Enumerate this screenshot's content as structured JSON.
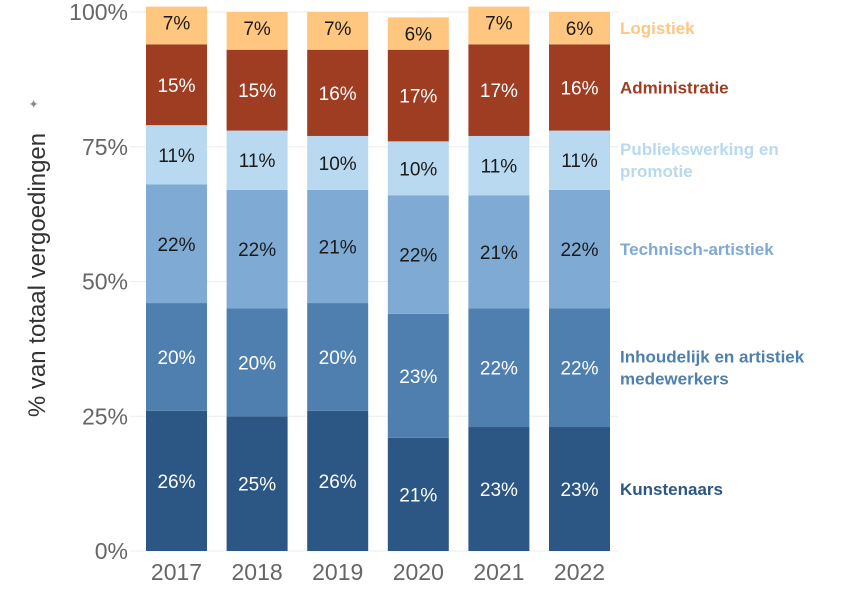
{
  "chart_data": {
    "type": "bar",
    "stacked": true,
    "title": "",
    "xlabel": "",
    "ylabel": "% van totaal vergoedingen",
    "ylabel_marker": "✦",
    "ylim": [
      0,
      100
    ],
    "y_ticks": [
      "0%",
      "25%",
      "50%",
      "75%",
      "100%"
    ],
    "y_tick_values": [
      0,
      25,
      50,
      75,
      100
    ],
    "categories": [
      "2017",
      "2018",
      "2019",
      "2020",
      "2021",
      "2022"
    ],
    "series": [
      {
        "name": "Kunstenaars",
        "legend_lines": [
          "Kunstenaars"
        ],
        "color": "#2c5784",
        "label_color": "#ffffff",
        "values": [
          26,
          25,
          26,
          21,
          23,
          23
        ]
      },
      {
        "name": "Inhoudelijk en artistiek medewerkers",
        "legend_lines": [
          "Inhoudelijk en artistiek",
          "medewerkers"
        ],
        "color": "#4e7fae",
        "label_color": "#ffffff",
        "values": [
          20,
          20,
          20,
          23,
          22,
          22
        ]
      },
      {
        "name": "Technisch-artistiek",
        "legend_lines": [
          "Technisch-artistiek"
        ],
        "color": "#7faad3",
        "label_color": "#1a1a1a",
        "values": [
          22,
          22,
          21,
          22,
          21,
          22
        ]
      },
      {
        "name": "Publiekswerking en promotie",
        "legend_lines": [
          "Publiekswerking en",
          "promotie"
        ],
        "color": "#b8d9ef",
        "label_color": "#1a1a1a",
        "values": [
          11,
          11,
          10,
          10,
          11,
          11
        ]
      },
      {
        "name": "Administratie",
        "legend_lines": [
          "Administratie"
        ],
        "color": "#9e3d22",
        "label_color": "#ffffff",
        "values": [
          15,
          15,
          16,
          17,
          17,
          16
        ]
      },
      {
        "name": "Logistiek",
        "legend_lines": [
          "Logistiek"
        ],
        "color": "#ffc680",
        "label_color": "#1a1a1a",
        "values": [
          7,
          7,
          7,
          6,
          7,
          6
        ]
      }
    ],
    "legend_colors": [
      "#2c5784",
      "#4e7fae",
      "#7faad3",
      "#b8d9ef",
      "#9e3d22",
      "#ffc680"
    ],
    "gridline_color": "#eeeeee",
    "axis_text_color": "#666666"
  }
}
